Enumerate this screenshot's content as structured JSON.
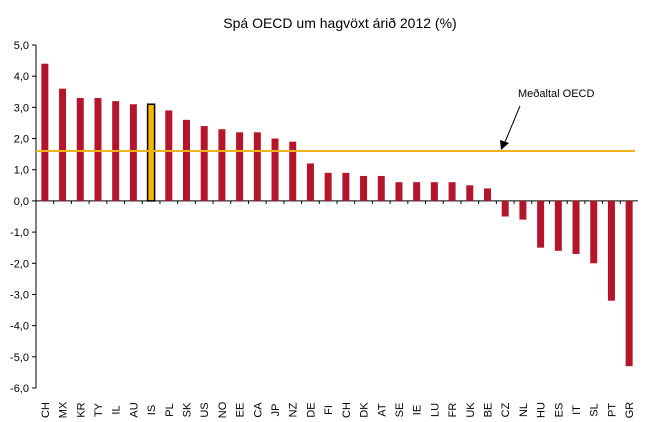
{
  "chart_data": {
    "type": "bar",
    "title": "Spá OECD um hagvöxt árið 2012 (%)",
    "categories": [
      "CH",
      "MX",
      "KR",
      "TY",
      "IL",
      "AU",
      "IS",
      "PL",
      "SK",
      "US",
      "NO",
      "EE",
      "CA",
      "JP",
      "NZ",
      "DE",
      "FI",
      "CH",
      "DK",
      "AT",
      "SE",
      "IE",
      "LU",
      "FR",
      "UK",
      "BE",
      "CZ",
      "NL",
      "HU",
      "ES",
      "IT",
      "SL",
      "PT",
      "GR"
    ],
    "values": [
      4.4,
      3.6,
      3.3,
      3.3,
      3.2,
      3.1,
      3.1,
      2.9,
      2.6,
      2.4,
      2.3,
      2.2,
      2.2,
      2.0,
      1.9,
      1.2,
      0.9,
      0.9,
      0.8,
      0.8,
      0.6,
      0.6,
      0.6,
      0.6,
      0.5,
      0.4,
      -0.5,
      -0.6,
      -1.5,
      -1.6,
      -1.7,
      -2.0,
      -3.2,
      -5.3
    ],
    "highlight_category": "IS",
    "yticks": [
      "5,0",
      "4,0",
      "3,0",
      "2,0",
      "1,0",
      "0,0",
      "-1,0",
      "-2,0",
      "-3,0",
      "-4,0",
      "-5,0",
      "-6,0"
    ],
    "ylim": [
      -6,
      5
    ],
    "average_line": {
      "label": "Meðaltal OECD",
      "value": 1.6
    },
    "colors": {
      "bar": "#b5152b",
      "highlight_fill": "#f5b800",
      "highlight_stroke": "#000000",
      "average_line": "#f0b419",
      "axis": "#000000"
    },
    "grid": false,
    "legend": "none"
  }
}
